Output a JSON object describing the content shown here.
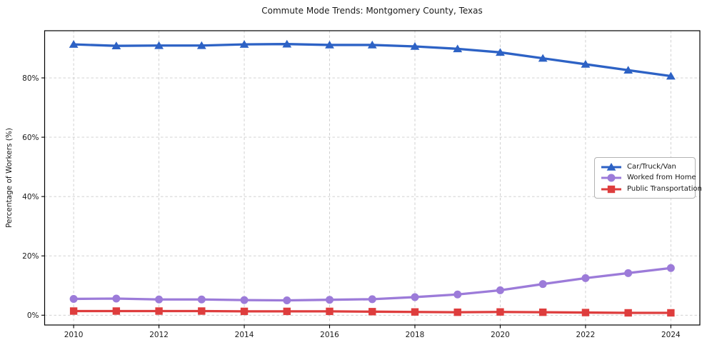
{
  "chart_data": {
    "type": "line",
    "title": "Commute Mode Trends: Montgomery County, Texas",
    "xlabel": "",
    "ylabel": "Percentage of Workers (%)",
    "x": [
      2010,
      2011,
      2012,
      2013,
      2014,
      2015,
      2016,
      2017,
      2018,
      2019,
      2020,
      2021,
      2022,
      2023,
      2024
    ],
    "series": [
      {
        "name": "Car/Truck/Van",
        "color": "#2d62c5",
        "marker": "triangle",
        "values": [
          91.3,
          90.8,
          90.9,
          90.9,
          91.3,
          91.4,
          91.1,
          91.1,
          90.6,
          89.8,
          88.6,
          86.6,
          84.6,
          82.6,
          80.6
        ]
      },
      {
        "name": "Worked from Home",
        "color": "#9c7bd9",
        "marker": "circle",
        "values": [
          5.5,
          5.6,
          5.3,
          5.3,
          5.1,
          5.0,
          5.2,
          5.4,
          6.1,
          7.0,
          8.4,
          10.5,
          12.5,
          14.2,
          15.9
        ]
      },
      {
        "name": "Public Transportation",
        "color": "#de3d3d",
        "marker": "square",
        "values": [
          1.4,
          1.4,
          1.4,
          1.4,
          1.3,
          1.3,
          1.3,
          1.2,
          1.1,
          1.0,
          1.1,
          1.0,
          0.9,
          0.8,
          0.8
        ]
      }
    ],
    "xticks": [
      2010,
      2012,
      2014,
      2016,
      2018,
      2020,
      2022,
      2024
    ],
    "ytick_values": [
      0,
      20,
      40,
      60,
      80
    ],
    "ytick_labels": [
      "0%",
      "20%",
      "40%",
      "60%",
      "80%"
    ],
    "xlim": [
      2009.32,
      2024.68
    ],
    "ylim": [
      -3.3,
      95.9
    ],
    "grid": true,
    "grid_color": "#cccccc",
    "axis_color": "#000000",
    "text_color": "#1a1a1a",
    "legend_position": "center-right"
  }
}
